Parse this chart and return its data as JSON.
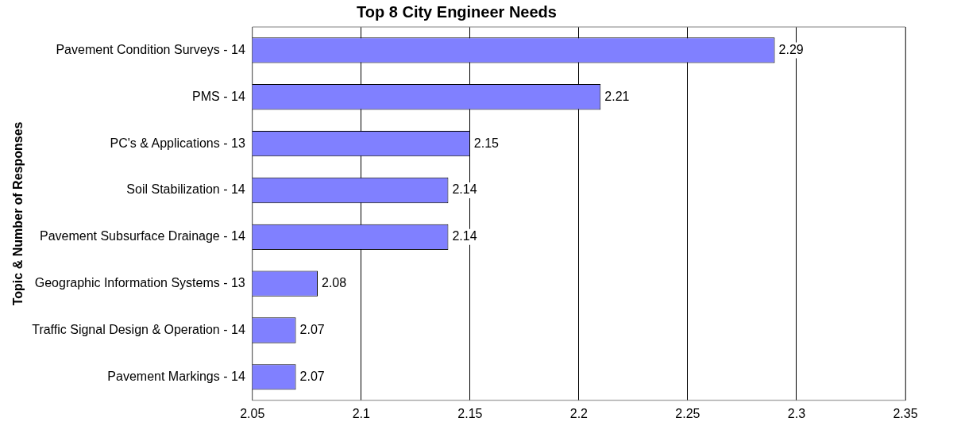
{
  "chart_data": {
    "type": "bar",
    "orientation": "horizontal",
    "title": "Top 8 City Engineer Needs",
    "ylabel": "Topic & Number of Responses",
    "categories": [
      "Pavement Condition Surveys - 14",
      "PMS - 14",
      "PC's & Applications - 13",
      "Soil Stabilization - 14",
      "Pavement Subsurface Drainage - 14",
      "Geographic Information Systems - 13",
      "Traffic Signal Design & Operation - 14",
      "Pavement Markings - 14"
    ],
    "values": [
      2.29,
      2.21,
      2.15,
      2.14,
      2.14,
      2.08,
      2.07,
      2.07
    ],
    "color": "#8080ff",
    "xlim": [
      2.05,
      2.35
    ],
    "xticks": [
      2.05,
      2.1,
      2.15,
      2.2,
      2.25,
      2.3,
      2.35
    ],
    "grid": "x",
    "data_labels": true,
    "legend": false
  }
}
